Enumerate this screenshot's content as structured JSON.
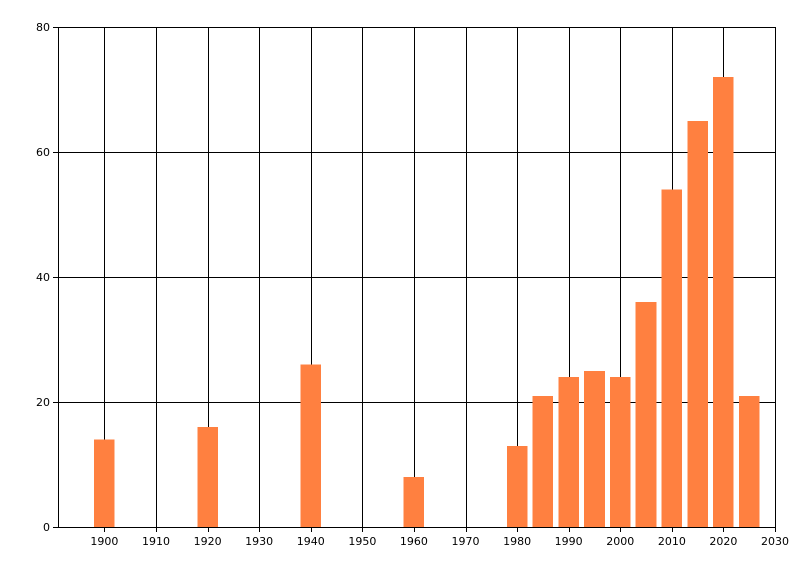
{
  "chart_data": {
    "type": "bar",
    "x": [
      1900,
      1920,
      1940,
      1960,
      1980,
      1985,
      1990,
      1995,
      2000,
      2005,
      2010,
      2015,
      2020,
      2025
    ],
    "values": [
      14,
      16,
      26,
      8,
      13,
      21,
      24,
      25,
      24,
      36,
      54,
      65,
      72,
      21
    ],
    "bar_width_years": 4,
    "xlim": [
      1891,
      2030
    ],
    "ylim": [
      0,
      80
    ],
    "xticks": [
      1900,
      1910,
      1920,
      1930,
      1940,
      1950,
      1960,
      1970,
      1980,
      1990,
      2000,
      2010,
      2020,
      2030
    ],
    "yticks": [
      0,
      20,
      40,
      60,
      80
    ],
    "grid": true,
    "bar_color": "#ff8040",
    "title": "",
    "xlabel": "",
    "ylabel": ""
  }
}
